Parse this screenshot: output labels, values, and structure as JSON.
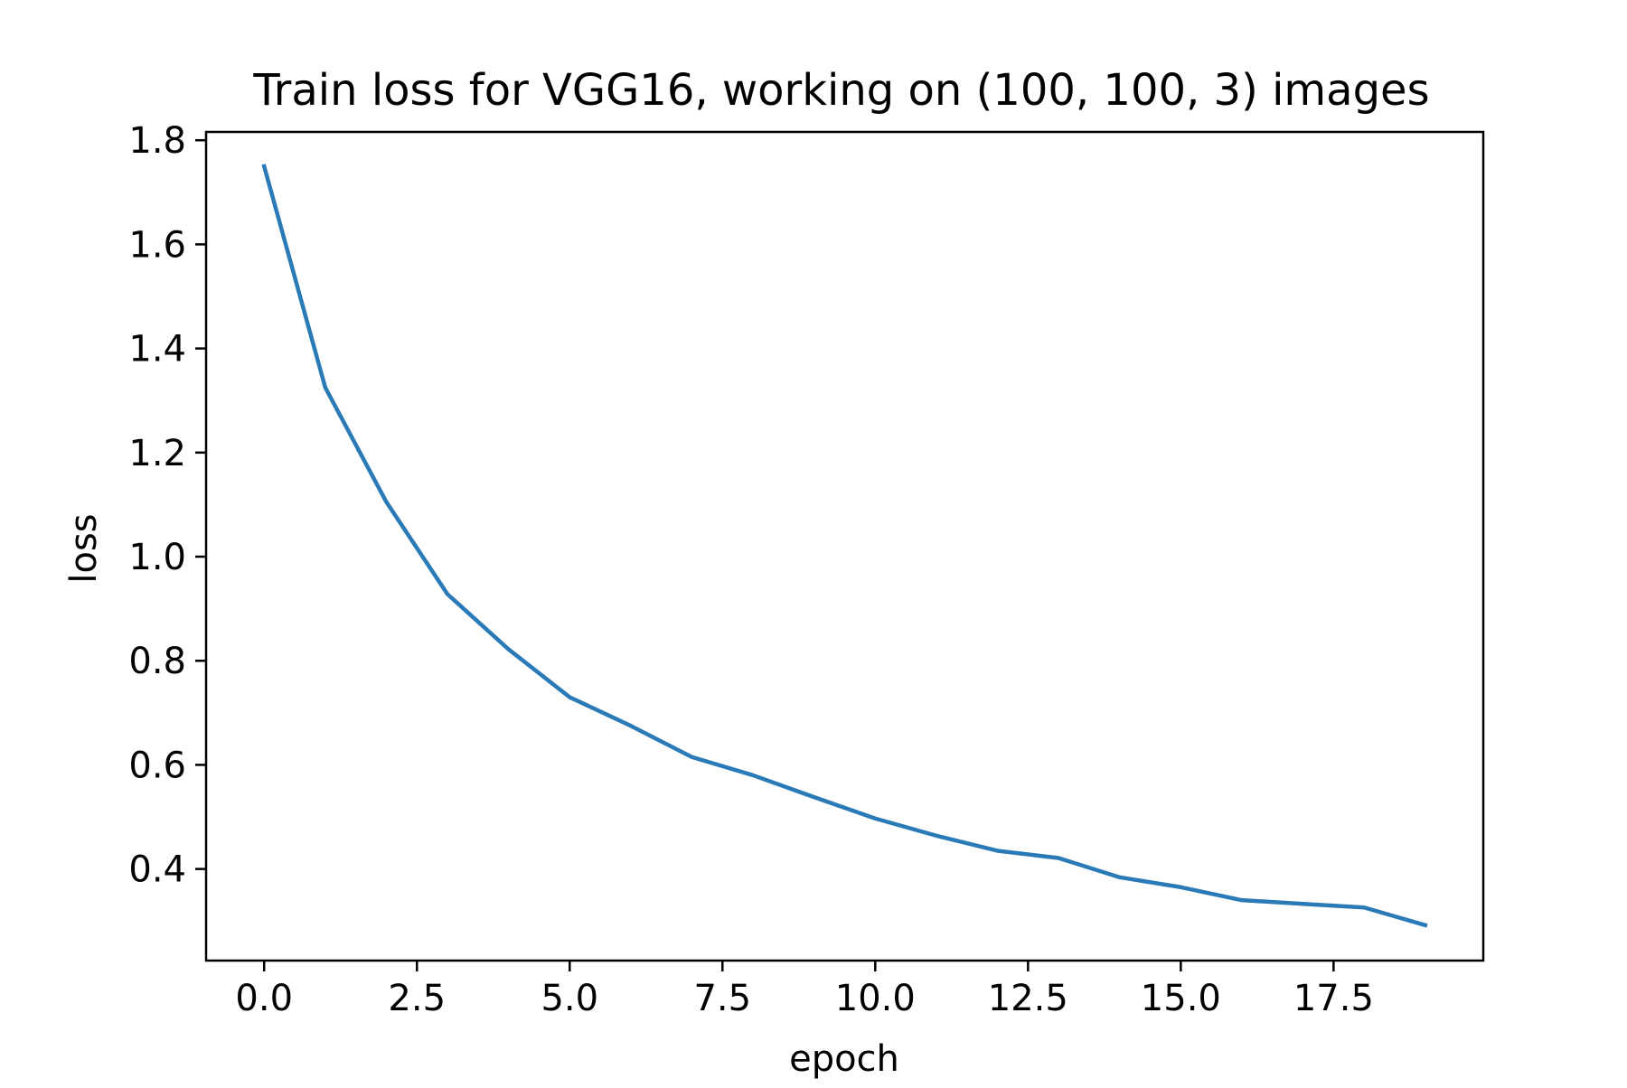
{
  "chart_data": {
    "type": "line",
    "title": "Train loss for VGG16, working on (100, 100, 3) images",
    "xlabel": "epoch",
    "ylabel": "loss",
    "xlim": [
      -0.95,
      19.95
    ],
    "ylim": [
      0.224,
      1.816
    ],
    "grid": false,
    "x_ticks": [
      0.0,
      2.5,
      5.0,
      7.5,
      10.0,
      12.5,
      15.0,
      17.5
    ],
    "x_tick_labels": [
      "0.0",
      "2.5",
      "5.0",
      "7.5",
      "10.0",
      "12.5",
      "15.0",
      "17.5"
    ],
    "y_ticks": [
      0.4,
      0.6,
      0.8,
      1.0,
      1.2,
      1.4,
      1.6,
      1.8
    ],
    "y_tick_labels": [
      "0.4",
      "0.6",
      "0.8",
      "1.0",
      "1.2",
      "1.4",
      "1.6",
      "1.8"
    ],
    "color": "#2a7ab8",
    "series": [
      {
        "x": [
          0,
          1,
          2,
          3,
          4,
          5,
          6,
          7,
          8,
          9,
          10,
          11,
          12,
          13,
          14,
          15,
          16,
          17,
          18,
          19
        ],
        "values": [
          1.75,
          1.325,
          1.105,
          0.928,
          0.822,
          0.73,
          0.675,
          0.615,
          0.58,
          0.538,
          0.497,
          0.464,
          0.435,
          0.421,
          0.384,
          0.365,
          0.34,
          0.333,
          0.326,
          0.292
        ]
      }
    ]
  }
}
